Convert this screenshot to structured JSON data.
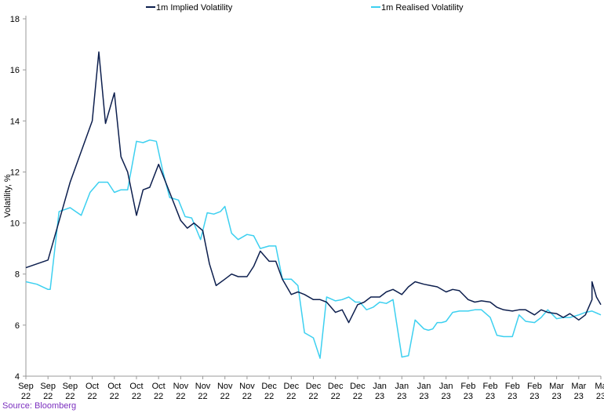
{
  "chart_data": {
    "type": "line",
    "title": "",
    "xlabel": "",
    "ylabel": "Volatility, %",
    "ylim": [
      4,
      18
    ],
    "yticks": [
      4,
      6,
      8,
      10,
      12,
      14,
      16,
      18
    ],
    "grid": false,
    "legend_position": "top",
    "x_tick_labels": [
      [
        "Sep",
        "22"
      ],
      [
        "Sep",
        "22"
      ],
      [
        "Sep",
        "22"
      ],
      [
        "Oct",
        "22"
      ],
      [
        "Oct",
        "22"
      ],
      [
        "Oct",
        "22"
      ],
      [
        "Oct",
        "22"
      ],
      [
        "Nov",
        "22"
      ],
      [
        "Nov",
        "22"
      ],
      [
        "Nov",
        "22"
      ],
      [
        "Nov",
        "22"
      ],
      [
        "Dec",
        "22"
      ],
      [
        "Dec",
        "22"
      ],
      [
        "Dec",
        "22"
      ],
      [
        "Dec",
        "22"
      ],
      [
        "Dec",
        "22"
      ],
      [
        "Jan",
        "23"
      ],
      [
        "Jan",
        "23"
      ],
      [
        "Jan",
        "23"
      ],
      [
        "Jan",
        "23"
      ],
      [
        "Feb",
        "23"
      ],
      [
        "Feb",
        "23"
      ],
      [
        "Feb",
        "23"
      ],
      [
        "Feb",
        "23"
      ],
      [
        "Mar",
        "23"
      ],
      [
        "Mar",
        "23"
      ],
      [
        "Ma",
        "23"
      ]
    ],
    "series": [
      {
        "name": "1m Implied Volatility",
        "color": "#0d1f4e",
        "x": [
          0,
          1,
          2,
          3,
          3.3,
          3.6,
          4,
          4.3,
          4.6,
          5,
          5.3,
          5.6,
          6,
          6.5,
          7,
          7.3,
          7.6,
          8,
          8.3,
          8.6,
          9,
          9.3,
          9.6,
          10,
          10.3,
          10.6,
          11,
          11.3,
          11.6,
          12,
          12.3,
          12.6,
          13,
          13.3,
          13.6,
          14,
          14.3,
          14.6,
          15,
          15.3,
          15.6,
          16,
          16.3,
          16.6,
          17,
          17.3,
          17.6,
          18,
          18.3,
          18.6,
          19,
          19.3,
          19.6,
          20,
          20.3,
          20.6,
          21,
          21.3,
          21.6,
          22,
          22.3,
          22.6,
          23,
          23.3,
          23.6,
          24,
          24.3,
          24.6,
          25,
          25.3,
          25.6,
          26
        ],
        "values": [
          8.25,
          8.55,
          11.6,
          14.0,
          16.7,
          13.9,
          15.1,
          12.6,
          12.0,
          10.3,
          11.3,
          11.4,
          12.3,
          11.2,
          10.1,
          9.8,
          10.0,
          9.7,
          8.4,
          7.55,
          7.8,
          8.0,
          7.9,
          7.9,
          8.3,
          8.9,
          8.5,
          8.5,
          7.8,
          7.2,
          7.3,
          7.2,
          7.0,
          7.0,
          6.9,
          6.5,
          6.6,
          6.1,
          6.8,
          6.9,
          7.1,
          7.1,
          7.3,
          7.4,
          7.2,
          7.5,
          7.7,
          7.6,
          7.55,
          7.5,
          7.3,
          7.4,
          7.35,
          7.0,
          6.9,
          6.95,
          6.9,
          6.7,
          6.6,
          6.55,
          6.6,
          6.6,
          6.4,
          6.6,
          6.5,
          6.45,
          6.3,
          6.45,
          6.2,
          6.4,
          7.0,
          6.8
        ],
        "values_at_end": [
          7.7,
          7.1,
          6.8
        ]
      },
      {
        "name": "1m Realised Volatility",
        "color": "#3dd0f0",
        "x": [
          0,
          0.5,
          1,
          1.1,
          1.5,
          2,
          2.5,
          2.9,
          3.3,
          3.7,
          4,
          4.3,
          4.6,
          5,
          5.3,
          5.6,
          5.9,
          6.2,
          6.5,
          6.9,
          7.2,
          7.5,
          7.9,
          8.2,
          8.5,
          8.8,
          9,
          9.3,
          9.6,
          10,
          10.3,
          10.6,
          11,
          11.3,
          11.6,
          12,
          12.3,
          12.6,
          13,
          13.3,
          13.6,
          14,
          14.3,
          14.6,
          14.9,
          15.1,
          15.4,
          15.7,
          16,
          16.3,
          16.6,
          17,
          17.3,
          17.6,
          18,
          18.2,
          18.4,
          18.6,
          18.8,
          19,
          19.3,
          19.6,
          20,
          20.3,
          20.6,
          21,
          21.3,
          21.6,
          22,
          22.3,
          22.6,
          23,
          23.3,
          23.6,
          24,
          24.3,
          24.6,
          25,
          25.3,
          25.6,
          26
        ],
        "values": [
          7.7,
          7.6,
          7.4,
          7.4,
          10.45,
          10.6,
          10.3,
          11.2,
          11.6,
          11.6,
          11.2,
          11.3,
          11.3,
          13.2,
          13.15,
          13.25,
          13.2,
          12.0,
          11.0,
          10.9,
          10.25,
          10.2,
          9.35,
          10.4,
          10.35,
          10.45,
          10.65,
          9.6,
          9.35,
          9.55,
          9.5,
          9.0,
          9.1,
          9.1,
          7.8,
          7.8,
          7.55,
          5.7,
          5.5,
          4.7,
          7.1,
          6.95,
          7.0,
          7.1,
          6.9,
          6.9,
          6.6,
          6.7,
          6.9,
          6.85,
          7.0,
          4.75,
          4.8,
          6.2,
          5.85,
          5.8,
          5.85,
          6.1,
          6.1,
          6.15,
          6.5,
          6.55,
          6.55,
          6.6,
          6.6,
          6.3,
          5.6,
          5.55,
          5.55,
          6.4,
          6.15,
          6.1,
          6.3,
          6.6,
          6.25,
          6.3,
          6.3,
          6.4,
          6.5,
          6.55,
          6.4
        ]
      }
    ]
  },
  "legend": {
    "implied_label": "1m Implied Volatility",
    "realised_label": "1m Realised Volatility"
  },
  "source_text": "Source: Bloomberg"
}
